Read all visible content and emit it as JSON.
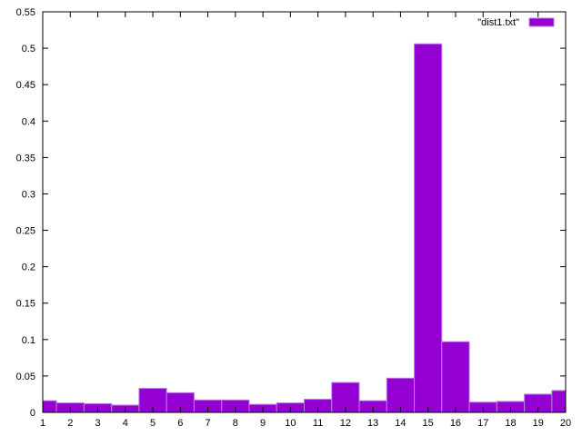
{
  "chart_data": {
    "type": "bar",
    "categories": [
      "1",
      "2",
      "3",
      "4",
      "5",
      "6",
      "7",
      "8",
      "9",
      "10",
      "11",
      "12",
      "13",
      "14",
      "15",
      "16",
      "17",
      "18",
      "19",
      "20"
    ],
    "xlim": [
      1,
      20
    ],
    "ylim": [
      0,
      0.55
    ],
    "yticks": [
      "0",
      "0.05",
      "0.1",
      "0.15",
      "0.2",
      "0.25",
      "0.3",
      "0.35",
      "0.4",
      "0.45",
      "0.5",
      "0.55"
    ],
    "series": [
      {
        "name": "\"dist1.txt\"",
        "color": "#9400d3",
        "values": [
          0.016,
          0.013,
          0.012,
          0.01,
          0.033,
          0.027,
          0.017,
          0.017,
          0.011,
          0.013,
          0.018,
          0.041,
          0.016,
          0.047,
          0.506,
          0.097,
          0.014,
          0.015,
          0.025,
          0.03
        ]
      }
    ],
    "grid": false,
    "legend_position": "top-right"
  }
}
